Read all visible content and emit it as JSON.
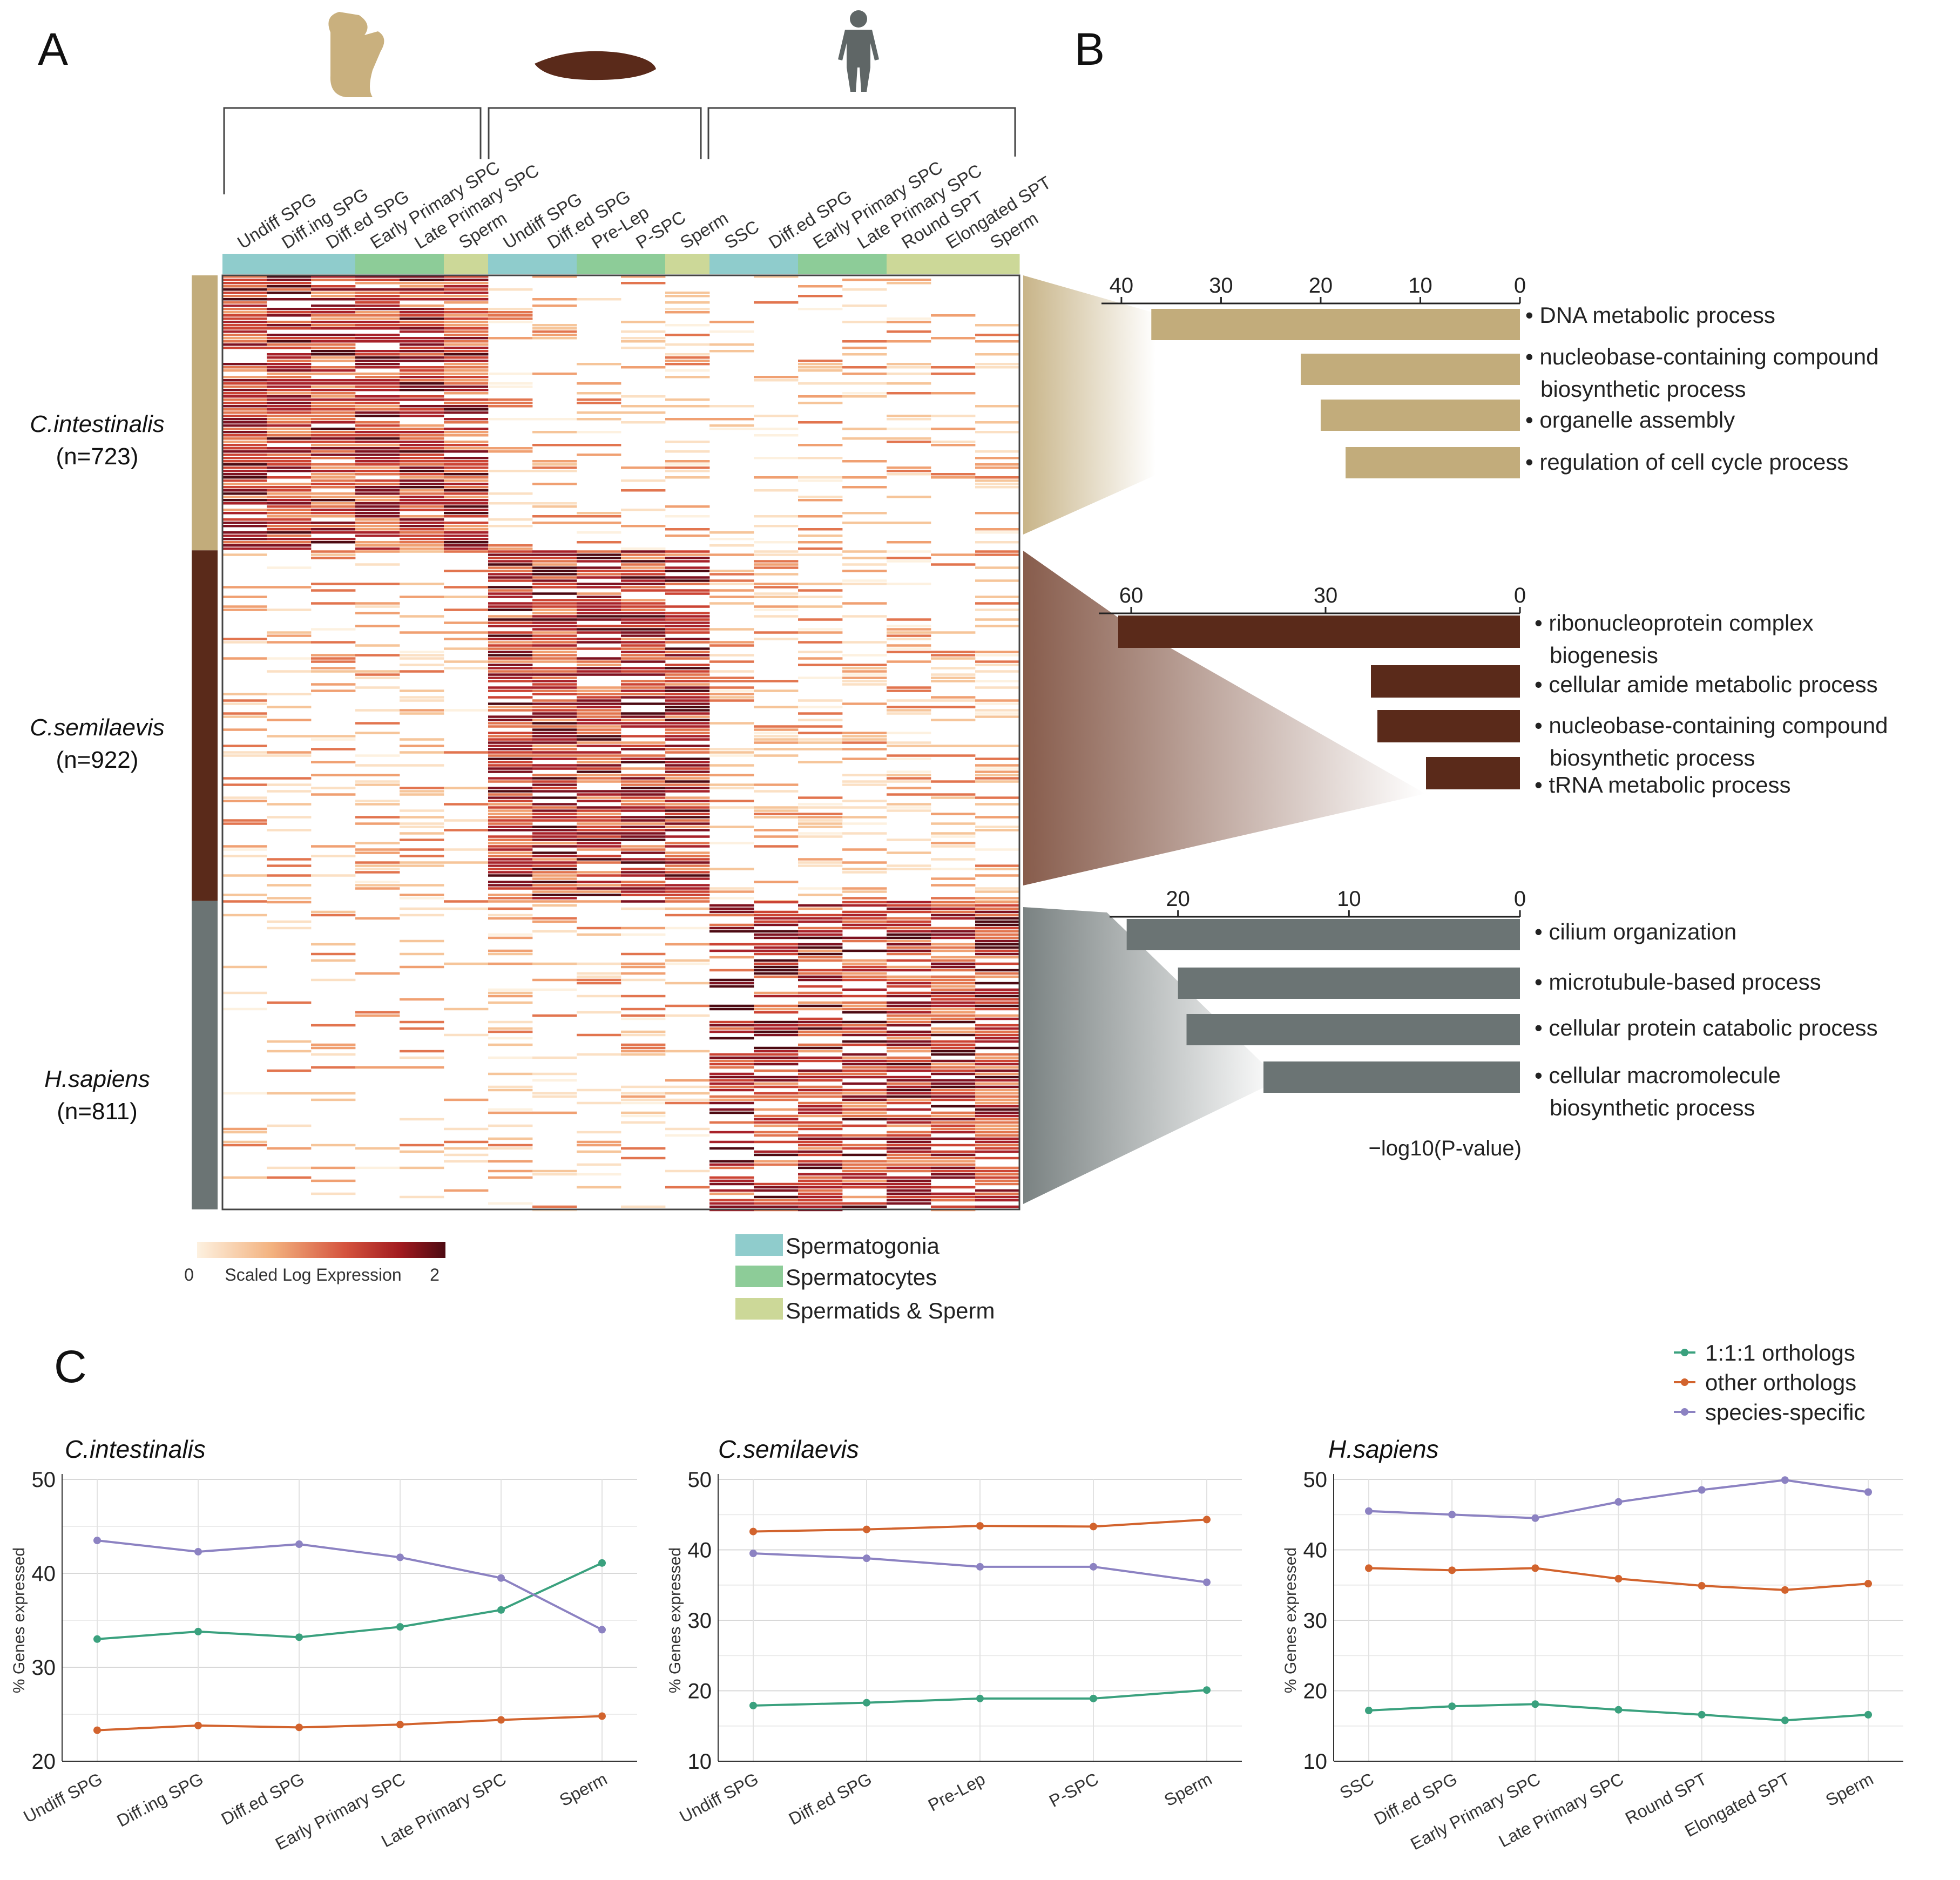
{
  "panels": {
    "a": "A",
    "b": "B",
    "c": "C"
  },
  "heatmap": {
    "groups": [
      {
        "key": "ci",
        "columns": [
          "Undiff SPG",
          "Diff.ing SPG",
          "Diff.ed SPG",
          "Early Primary SPC",
          "Late Primary SPC",
          "Sperm"
        ],
        "stages": [
          "sg",
          "sg",
          "sg",
          "sc",
          "sc",
          "st"
        ]
      },
      {
        "key": "cs",
        "columns": [
          "Undiff SPG",
          "Diff.ed SPG",
          "Pre-Lep",
          "P-SPC",
          "Sperm"
        ],
        "stages": [
          "sg",
          "sg",
          "sc",
          "sc",
          "st"
        ]
      },
      {
        "key": "hs",
        "columns": [
          "SSC",
          "Diff.ed SPG",
          "Early Primary SPC",
          "Late Primary SPC",
          "Round SPT",
          "Elongated SPT",
          "Sperm"
        ],
        "stages": [
          "sg",
          "sg",
          "sc",
          "sc",
          "st",
          "st",
          "st"
        ]
      }
    ],
    "rows": [
      {
        "name": "C.intestinalis",
        "count": "(n=723)",
        "n": 723,
        "color": "#c2ac7b"
      },
      {
        "name": "C.semilaevis",
        "count": "(n=922)",
        "n": 922,
        "color": "#5a2a1a"
      },
      {
        "name": "H.sapiens",
        "count": "(n=811)",
        "n": 811,
        "color": "#6b7474"
      }
    ],
    "colorbar": {
      "min": "0",
      "max": "2",
      "label": "Scaled Log Expression",
      "colors": [
        "#fdf1e0",
        "#f3b27f",
        "#d4523d",
        "#a11a1f",
        "#4d0a12"
      ]
    },
    "stage_legend": [
      {
        "label": "Spermatogonia",
        "color": "#8fcccc"
      },
      {
        "label": "Spermatocytes",
        "color": "#8dcc98"
      },
      {
        "label": "Spermatids & Sperm",
        "color": "#ccd898"
      }
    ]
  },
  "chart_data": [
    {
      "type": "bar",
      "orientation": "horizontal-reversed",
      "categories": [
        "DNA metabolic process",
        "nucleobase-containing compound biosynthetic process",
        "organelle assembly",
        "regulation of cell cycle process"
      ],
      "labels": [
        [
          "DNA metabolic process"
        ],
        [
          "nucleobase-containing compound",
          "biosynthetic process"
        ],
        [
          "organelle assembly"
        ],
        [
          "regulation of cell cycle process"
        ]
      ],
      "values": [
        37,
        22,
        20,
        17.5
      ],
      "xlim": [
        0,
        42
      ],
      "ticks": [
        40,
        30,
        20,
        10,
        0
      ],
      "color": "#c2ac7b"
    },
    {
      "type": "bar",
      "orientation": "horizontal-reversed",
      "categories": [
        "ribonucleoprotein complex biogenesis",
        "cellular amide metabolic process",
        "nucleobase-containing compound biosynthetic process",
        "tRNA metabolic process"
      ],
      "labels": [
        [
          "ribonucleoprotein complex",
          "biogenesis"
        ],
        [
          "cellular amide metabolic process"
        ],
        [
          "nucleobase-containing compound",
          "biosynthetic process"
        ],
        [
          "tRNA metabolic process"
        ]
      ],
      "values": [
        62,
        23,
        22,
        14.5
      ],
      "xlim": [
        0,
        65
      ],
      "ticks": [
        60,
        30,
        0
      ],
      "color": "#5a2a1a"
    },
    {
      "type": "bar",
      "orientation": "horizontal-reversed",
      "categories": [
        "cilium organization",
        "microtubule-based process",
        "cellular protein catabolic process",
        "cellular macromolecule biosynthetic process"
      ],
      "labels": [
        [
          "cilium organization"
        ],
        [
          "microtubule-based process"
        ],
        [
          "cellular protein catabolic process"
        ],
        [
          "cellular macromolecule",
          "biosynthetic process"
        ]
      ],
      "values": [
        23,
        20,
        19.5,
        15
      ],
      "xlim": [
        0,
        24
      ],
      "ticks": [
        20,
        10,
        0
      ],
      "color": "#6b7474",
      "xlabel": "−log10(P-value)"
    },
    {
      "type": "line",
      "title": "C.intestinalis",
      "ylabel": "% Genes expressed",
      "ylim": [
        20,
        50
      ],
      "yticks": [
        20,
        30,
        40,
        50
      ],
      "categories": [
        "Undiff SPG",
        "Diff.ing SPG",
        "Diff.ed SPG",
        "Early Primary SPC",
        "Late Primary SPC",
        "Sperm"
      ],
      "series": [
        {
          "name": "1:1:1 orthologs",
          "values": [
            33.0,
            33.8,
            33.2,
            34.3,
            36.1,
            41.1
          ]
        },
        {
          "name": "other orthologs",
          "values": [
            23.3,
            23.8,
            23.6,
            23.9,
            24.4,
            24.8
          ]
        },
        {
          "name": "species-specific",
          "values": [
            43.5,
            42.3,
            43.1,
            41.7,
            39.5,
            34.0
          ]
        }
      ]
    },
    {
      "type": "line",
      "title": "C.semilaevis",
      "ylabel": "% Genes expressed",
      "ylim": [
        10,
        50
      ],
      "yticks": [
        10,
        20,
        30,
        40,
        50
      ],
      "categories": [
        "Undiff SPG",
        "Diff.ed SPG",
        "Pre-Lep",
        "P-SPC",
        "Sperm"
      ],
      "series": [
        {
          "name": "1:1:1 orthologs",
          "values": [
            17.9,
            18.3,
            18.9,
            18.9,
            20.1
          ]
        },
        {
          "name": "other orthologs",
          "values": [
            42.6,
            42.9,
            43.4,
            43.3,
            44.3
          ]
        },
        {
          "name": "species-specific",
          "values": [
            39.5,
            38.8,
            37.6,
            37.6,
            35.4
          ]
        }
      ]
    },
    {
      "type": "line",
      "title": "H.sapiens",
      "ylabel": "% Genes expressed",
      "ylim": [
        10,
        50
      ],
      "yticks": [
        10,
        20,
        30,
        40,
        50
      ],
      "categories": [
        "SSC",
        "Diff.ed SPG",
        "Early Primary SPC",
        "Late Primary SPC",
        "Round SPT",
        "Elongated SPT",
        "Sperm"
      ],
      "series": [
        {
          "name": "1:1:1 orthologs",
          "values": [
            17.2,
            17.8,
            18.1,
            17.3,
            16.6,
            15.8,
            16.6
          ]
        },
        {
          "name": "other orthologs",
          "values": [
            37.4,
            37.1,
            37.4,
            35.9,
            34.9,
            34.3,
            35.2
          ]
        },
        {
          "name": "species-specific",
          "values": [
            45.5,
            45.0,
            44.5,
            46.8,
            48.5,
            49.9,
            48.2
          ]
        }
      ]
    }
  ],
  "line_legend": [
    {
      "label": "1:1:1 orthologs",
      "color": "#3aa17e"
    },
    {
      "label": "other orthologs",
      "color": "#d2632d"
    },
    {
      "label": "species-specific",
      "color": "#8c82c2"
    }
  ]
}
